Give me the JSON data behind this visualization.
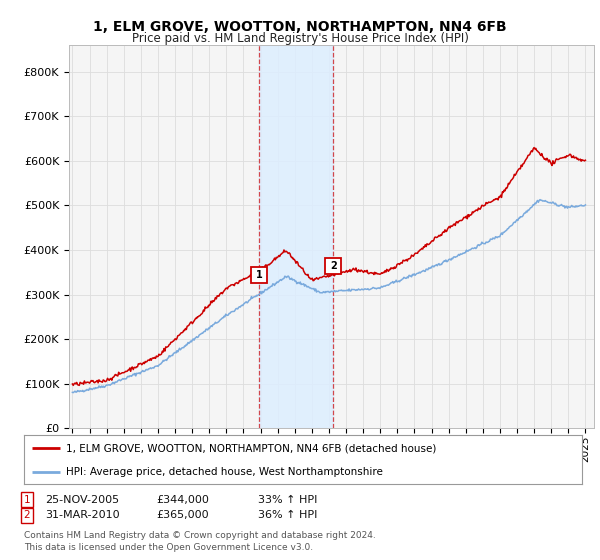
{
  "title": "1, ELM GROVE, WOOTTON, NORTHAMPTON, NN4 6FB",
  "subtitle": "Price paid vs. HM Land Registry's House Price Index (HPI)",
  "background_color": "#ffffff",
  "plot_bg_color": "#f5f5f5",
  "yticks": [
    0,
    100000,
    200000,
    300000,
    400000,
    500000,
    600000,
    700000,
    800000
  ],
  "ytick_labels": [
    "£0",
    "£100K",
    "£200K",
    "£300K",
    "£400K",
    "£500K",
    "£600K",
    "£700K",
    "£800K"
  ],
  "ylim": [
    0,
    860000
  ],
  "xlim_start": 1994.8,
  "xlim_end": 2025.5,
  "red_line_color": "#cc0000",
  "blue_line_color": "#7aaadd",
  "grid_color": "#dddddd",
  "vline_color": "#cc0000",
  "highlight_fill": "#ddeeff",
  "sale1_x": 2005.9,
  "sale1_y": 344000,
  "sale1_label": "1",
  "sale1_date": "25-NOV-2005",
  "sale1_price": "£344,000",
  "sale1_hpi": "33% ↑ HPI",
  "sale2_x": 2010.25,
  "sale2_y": 365000,
  "sale2_label": "2",
  "sale2_date": "31-MAR-2010",
  "sale2_price": "£365,000",
  "sale2_hpi": "36% ↑ HPI",
  "legend_line1": "1, ELM GROVE, WOOTTON, NORTHAMPTON, NN4 6FB (detached house)",
  "legend_line2": "HPI: Average price, detached house, West Northamptonshire",
  "footnote": "Contains HM Land Registry data © Crown copyright and database right 2024.\nThis data is licensed under the Open Government Licence v3.0.",
  "xtick_years": [
    1995,
    1996,
    1997,
    1998,
    1999,
    2000,
    2001,
    2002,
    2003,
    2004,
    2005,
    2006,
    2007,
    2008,
    2009,
    2010,
    2011,
    2012,
    2013,
    2014,
    2015,
    2016,
    2017,
    2018,
    2019,
    2020,
    2021,
    2022,
    2023,
    2024,
    2025
  ]
}
